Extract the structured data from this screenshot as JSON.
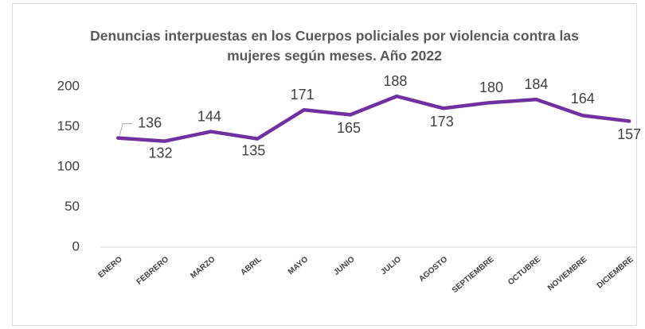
{
  "chart_data": {
    "type": "line",
    "title": "Denuncias interpuestas en los Cuerpos policiales por violencia contra las mujeres según meses. Año 2022",
    "categories": [
      "ENERO",
      "FEBRERO",
      "MARZO",
      "ABRIL",
      "MAYO",
      "JUNIO",
      "JULIO",
      "AGOSTO",
      "SEPTIEMBRE",
      "OCTUBRE",
      "NOVIEMBRE",
      "DICIEMBRE"
    ],
    "series": [
      {
        "name": "Denuncias",
        "color": "#7030a0",
        "values": [
          136,
          132,
          144,
          135,
          171,
          165,
          188,
          173,
          180,
          184,
          164,
          157
        ]
      }
    ],
    "ylim": [
      0,
      200
    ],
    "yticks": [
      0,
      50,
      100,
      150,
      200
    ],
    "grid": false
  }
}
